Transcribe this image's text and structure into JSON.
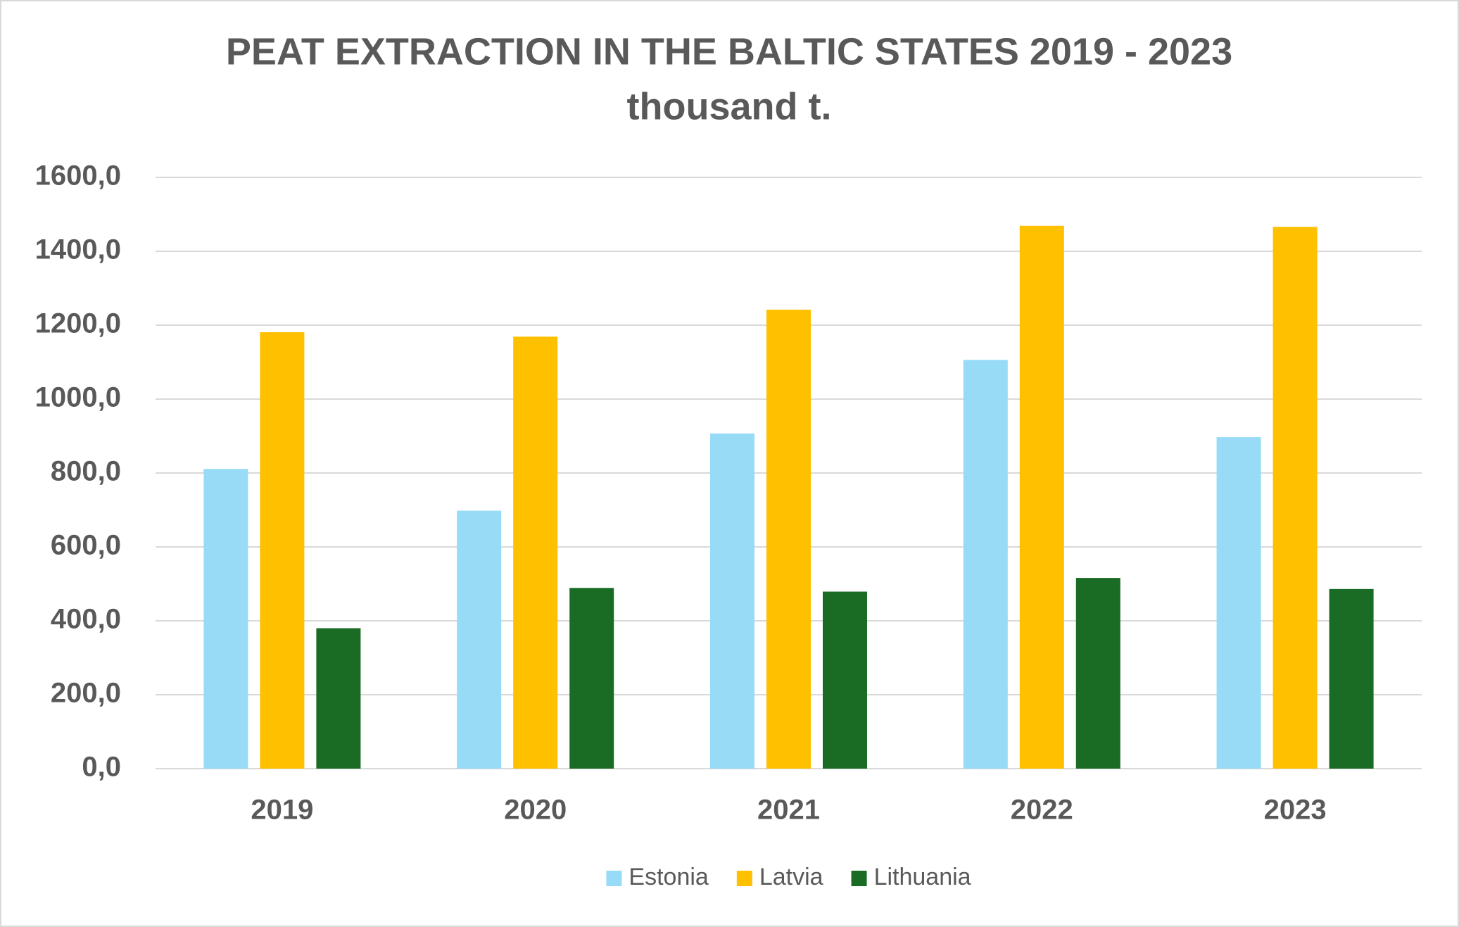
{
  "chart_data": {
    "type": "bar",
    "title": "PEAT EXTRACTION IN THE BALTIC STATES 2019 - 2023",
    "subtitle": "thousand t.",
    "categories": [
      "2019",
      "2020",
      "2021",
      "2022",
      "2023"
    ],
    "series": [
      {
        "name": "Estonia",
        "color": "#97dbf7",
        "values": [
          811,
          698,
          907,
          1106,
          897
        ]
      },
      {
        "name": "Latvia",
        "color": "#ffc000",
        "values": [
          1181,
          1169,
          1242,
          1469,
          1466
        ]
      },
      {
        "name": "Lithuania",
        "color": "#1a6b24",
        "values": [
          380,
          489,
          479,
          516,
          486
        ]
      }
    ],
    "ylim": [
      0,
      1600
    ],
    "yticks": [
      {
        "value": 0,
        "label": "0,0"
      },
      {
        "value": 200,
        "label": "200,0"
      },
      {
        "value": 400,
        "label": "400,0"
      },
      {
        "value": 600,
        "label": "600,0"
      },
      {
        "value": 800,
        "label": "800,0"
      },
      {
        "value": 1000,
        "label": "1000,0"
      },
      {
        "value": 1200,
        "label": "1200,0"
      },
      {
        "value": 1400,
        "label": "1400,0"
      },
      {
        "value": 1600,
        "label": "1600,0"
      }
    ],
    "grid": true,
    "legend": "bottom"
  }
}
